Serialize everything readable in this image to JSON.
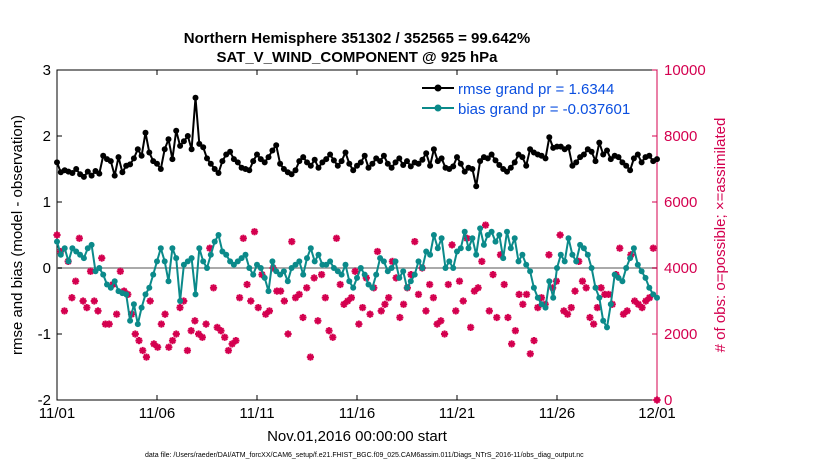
{
  "chart_data": {
    "type": "line",
    "title": "Northern Hemisphere 351302 / 352565 = 99.642%",
    "subtitle": "SAT_V_WIND_COMPONENT @ 925 hPa",
    "xlabel": "Nov.01,2016 00:00:00 start",
    "ylabel": "rmse and bias (model - observation)",
    "y2label": "# of obs: o=possible; ×=assimilated",
    "footnote": "data file: /Users/raeder/DAI/ATM_forcXX/CAM6_setup/f.e21.FHIST_BGC.f09_025.CAM6assim.011/Diags_NTrS_2016-11/obs_diag_output.nc",
    "xlim": [
      0,
      30
    ],
    "ylim": [
      -2,
      3
    ],
    "y2lim": [
      0,
      10000
    ],
    "x_ticks": [
      0,
      5,
      10,
      15,
      20,
      25,
      30
    ],
    "x_tick_labels": [
      "11/01",
      "11/06",
      "11/11",
      "11/16",
      "11/21",
      "11/26",
      "12/01"
    ],
    "y_ticks": [
      -2,
      -1,
      0,
      1,
      2,
      3
    ],
    "y_tick_labels": [
      "-2",
      "-1",
      "0",
      "1",
      "2",
      "3"
    ],
    "y2_ticks": [
      0,
      2000,
      4000,
      6000,
      8000,
      10000
    ],
    "y2_tick_labels": [
      "0",
      "2000",
      "4000",
      "6000",
      "8000",
      "10000"
    ],
    "zero_line": 0,
    "colors": {
      "rmse": "#000000",
      "bias": "#0b8a8a",
      "counts": "#d4004f",
      "legend_text": "#0b4fe0",
      "zero_line": "#aaaaaa"
    },
    "legend": {
      "placement": "top-right",
      "entries": [
        "rmse grand pr = 1.6344",
        "bias grand pr = -0.037601"
      ]
    },
    "series": [
      {
        "name": "rmse",
        "values": [
          1.6,
          1.45,
          1.48,
          1.46,
          1.44,
          1.5,
          1.42,
          1.38,
          1.46,
          1.4,
          1.47,
          1.43,
          1.7,
          1.65,
          1.62,
          1.4,
          1.68,
          1.45,
          1.55,
          1.57,
          1.66,
          1.8,
          1.7,
          2.05,
          1.75,
          1.62,
          1.58,
          1.5,
          1.8,
          1.95,
          1.65,
          2.08,
          1.85,
          1.92,
          2.0,
          1.8,
          2.58,
          1.88,
          1.83,
          1.66,
          1.58,
          1.5,
          1.44,
          1.62,
          1.72,
          1.76,
          1.65,
          1.6,
          1.52,
          1.5,
          1.48,
          1.62,
          1.72,
          1.65,
          1.6,
          1.68,
          1.78,
          1.86,
          1.58,
          1.5,
          1.45,
          1.42,
          1.48,
          1.62,
          1.68,
          1.6,
          1.55,
          1.64,
          1.52,
          1.6,
          1.65,
          1.72,
          1.63,
          1.55,
          1.62,
          1.75,
          1.58,
          1.48,
          1.55,
          1.6,
          1.7,
          1.52,
          1.58,
          1.66,
          1.62,
          1.7,
          1.58,
          1.52,
          1.6,
          1.66,
          1.56,
          1.62,
          1.54,
          1.6,
          1.58,
          1.64,
          1.74,
          1.55,
          1.8,
          1.62,
          1.66,
          1.52,
          1.5,
          1.54,
          1.68,
          1.58,
          1.46,
          1.52,
          1.5,
          1.24,
          1.62,
          1.68,
          1.66,
          1.72,
          1.63,
          1.56,
          1.5,
          1.46,
          1.52,
          1.6,
          1.72,
          1.68,
          1.55,
          1.8,
          1.75,
          1.72,
          1.7,
          1.66,
          1.98,
          1.82,
          1.84,
          1.84,
          1.8,
          1.83,
          1.55,
          1.6,
          1.68,
          1.72,
          1.8,
          1.76,
          1.62,
          1.9,
          1.72,
          1.78,
          1.65,
          1.7,
          1.68,
          1.6,
          1.55,
          1.48,
          1.66,
          1.72,
          1.6,
          1.68,
          1.7,
          1.62,
          1.65
        ]
      },
      {
        "name": "bias",
        "values": [
          0.4,
          0.2,
          0.3,
          0.1,
          0.3,
          0.25,
          0.2,
          0.15,
          0.3,
          0.35,
          -0.05,
          0.0,
          -0.1,
          -0.25,
          -0.3,
          -0.2,
          -0.35,
          -0.38,
          -0.4,
          -0.8,
          -0.55,
          -0.85,
          -0.6,
          -0.4,
          -0.3,
          -0.1,
          0.1,
          0.3,
          0.1,
          -0.2,
          0.3,
          0.15,
          -0.5,
          0.05,
          0.1,
          0.15,
          -0.4,
          0.3,
          0.1,
          0.0,
          0.2,
          0.4,
          0.5,
          0.25,
          0.2,
          0.1,
          0.05,
          0.1,
          0.15,
          0.2,
          0.0,
          -0.1,
          0.05,
          0.0,
          -0.15,
          -0.35,
          0.1,
          -0.05,
          -0.1,
          -0.05,
          -0.2,
          0.0,
          0.05,
          0.1,
          -0.1,
          0.15,
          0.3,
          0.1,
          0.2,
          0.05,
          0.05,
          0.1,
          0.0,
          -0.05,
          -0.1,
          0.05,
          -0.2,
          -0.3,
          -0.15,
          0.0,
          -0.1,
          -0.25,
          -0.3,
          -0.1,
          0.15,
          0.1,
          -0.05,
          0.0,
          0.1,
          -0.15,
          -0.05,
          -0.3,
          -0.2,
          -0.1,
          0.1,
          0.0,
          0.25,
          0.2,
          0.5,
          0.3,
          0.45,
          0.0,
          0.1,
          0.0,
          0.25,
          0.3,
          0.55,
          0.3,
          0.45,
          0.2,
          0.6,
          0.35,
          0.5,
          0.55,
          0.4,
          0.5,
          0.15,
          0.55,
          0.3,
          0.45,
          0.1,
          0.2,
          0.05,
          -0.05,
          -0.3,
          -0.45,
          -0.55,
          -0.6,
          -0.2,
          -0.45,
          0.0,
          0.2,
          0.1,
          0.45,
          0.2,
          0.1,
          0.35,
          0.3,
          0.2,
          0.0,
          -0.3,
          -0.45,
          -0.8,
          -0.9,
          -0.55,
          -0.1,
          -0.15,
          -0.2,
          0.0,
          0.15,
          0.3,
          0.05,
          -0.05,
          -0.15,
          -0.3,
          -0.4,
          -0.45
        ]
      },
      {
        "name": "assimilated_obs",
        "values": [
          5000,
          4500,
          2700,
          4200,
          3100,
          3600,
          4900,
          3000,
          2800,
          3900,
          3000,
          2700,
          4300,
          2300,
          2300,
          3500,
          2600,
          3900,
          3300,
          3200,
          2600,
          2000,
          1800,
          1500,
          1300,
          3000,
          1700,
          1600,
          2300,
          2600,
          1600,
          1800,
          2000,
          2800,
          3000,
          1500,
          2100,
          2400,
          2000,
          1900,
          2300,
          4600,
          3400,
          2200,
          2100,
          1900,
          1500,
          1700,
          1800,
          3100,
          4900,
          3500,
          3000,
          5100,
          2800,
          3800,
          2600,
          2700,
          4000,
          3300,
          3300,
          3000,
          2000,
          4800,
          3100,
          3200,
          2500,
          3400,
          1300,
          3700,
          2400,
          3800,
          3100,
          2100,
          1900,
          4900,
          3500,
          2900,
          3000,
          3100,
          3900,
          2300,
          2800,
          3700,
          2600,
          3400,
          4500,
          2700,
          2900,
          3100,
          4200,
          3700,
          2500,
          2900,
          3400,
          3800,
          4800,
          3200,
          4000,
          2700,
          3500,
          3100,
          2300,
          2400,
          2000,
          3500,
          4700,
          2700,
          3600,
          3000,
          4900,
          2200,
          3300,
          3400,
          4200,
          5300,
          2700,
          3800,
          2500,
          4400,
          3500,
          2500,
          1700,
          2100,
          3200,
          2900,
          3200,
          1400,
          1800,
          2800,
          3100,
          2900,
          4400,
          3400,
          3600,
          5000,
          2700,
          2600,
          2800,
          3300,
          4200,
          3600,
          3400,
          2500,
          2300,
          2800,
          3400,
          3200,
          3200,
          2900,
          3800,
          4600,
          2600,
          2700,
          4400,
          3000,
          2900,
          2800,
          3000,
          3100,
          4600,
          0
        ]
      }
    ]
  }
}
